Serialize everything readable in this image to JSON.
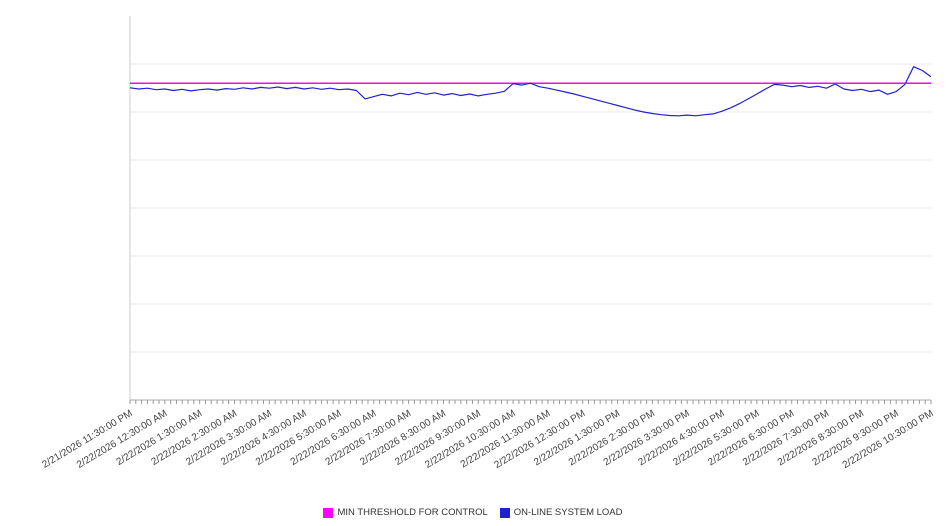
{
  "chart_data": {
    "type": "line",
    "title": "",
    "xlabel": "",
    "ylabel": "",
    "ylim": [
      0,
      100
    ],
    "grid": "horizontal",
    "grid_divisions": 8,
    "legend_position": "bottom",
    "x_tick_labels": [
      "2/21/2026 11:30:00 PM",
      "2/22/2026 12:30:00 AM",
      "2/22/2026 1:30:00 AM",
      "2/22/2026 2:30:00 AM",
      "2/22/2026 3:30:00 AM",
      "2/22/2026 4:30:00 AM",
      "2/22/2026 5:30:00 AM",
      "2/22/2026 6:30:00 AM",
      "2/22/2026 7:30:00 AM",
      "2/22/2026 8:30:00 AM",
      "2/22/2026 9:30:00 AM",
      "2/22/2026 10:30:00 AM",
      "2/22/2026 11:30:00 AM",
      "2/22/2026 12:30:00 PM",
      "2/22/2026 1:30:00 PM",
      "2/22/2026 2:30:00 PM",
      "2/22/2026 3:30:00 PM",
      "2/22/2026 4:30:00 PM",
      "2/22/2026 5:30:00 PM",
      "2/22/2026 6:30:00 PM",
      "2/22/2026 7:30:00 PM",
      "2/22/2026 8:30:00 PM",
      "2/22/2026 9:30:00 PM",
      "2/22/2026 10:30:00 PM"
    ],
    "sample_interval_minutes": 15,
    "series": [
      {
        "name": "MIN THRESHOLD FOR CONTROL",
        "color": "#FF00FF",
        "style": "constant",
        "value": 82.5
      },
      {
        "name": "ON-LINE SYSTEM LOAD",
        "color": "#2222CC",
        "style": "line",
        "values": [
          81.3,
          81.0,
          81.2,
          80.8,
          81.0,
          80.6,
          80.9,
          80.5,
          80.8,
          81.0,
          80.7,
          81.1,
          80.9,
          81.3,
          81.0,
          81.4,
          81.2,
          81.5,
          81.1,
          81.4,
          81.0,
          81.3,
          80.9,
          81.2,
          80.8,
          81.0,
          80.6,
          78.4,
          79.0,
          79.6,
          79.2,
          79.9,
          79.5,
          80.1,
          79.6,
          80.0,
          79.4,
          79.8,
          79.3,
          79.7,
          79.2,
          79.6,
          79.9,
          80.4,
          82.4,
          82.0,
          82.5,
          81.6,
          81.2,
          80.7,
          80.2,
          79.7,
          79.1,
          78.5,
          77.9,
          77.3,
          76.7,
          76.1,
          75.5,
          75.0,
          74.6,
          74.3,
          74.1,
          74.0,
          74.2,
          74.0,
          74.3,
          74.5,
          75.2,
          76.1,
          77.2,
          78.4,
          79.7,
          81.0,
          82.2,
          82.0,
          81.6,
          81.9,
          81.4,
          81.7,
          81.2,
          82.3,
          81.0,
          80.6,
          80.9,
          80.3,
          80.7,
          79.6,
          80.3,
          82.2,
          86.8,
          85.8,
          84.2
        ]
      }
    ],
    "colors": {
      "gridline": "#e8e8e8",
      "axis": "#aaaaaa",
      "tick": "#999999",
      "tick_label": "#444444"
    }
  }
}
